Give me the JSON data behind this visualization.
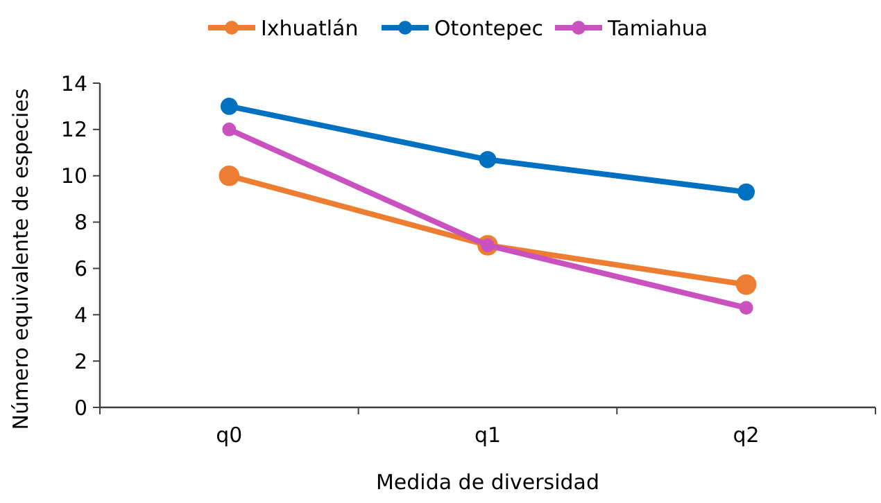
{
  "chart_data": {
    "type": "line",
    "xlabel": "Medida de diversidad",
    "ylabel": "Número equivalente de especies",
    "categories": [
      "q0",
      "q1",
      "q2"
    ],
    "series": [
      {
        "name": "Ixhuatlán",
        "color": "#ed7d31",
        "values": [
          10,
          7,
          5.3
        ]
      },
      {
        "name": "Otontepec",
        "color": "#0070c0",
        "values": [
          13,
          10.7,
          9.3
        ]
      },
      {
        "name": "Tamiahua",
        "color": "#c951c0",
        "values": [
          12,
          7,
          4.3
        ]
      }
    ],
    "ylim": [
      0,
      14
    ],
    "yticks": [
      0,
      2,
      4,
      6,
      8,
      10,
      12,
      14
    ],
    "grid": false,
    "legend": "top",
    "marker": "circle",
    "line_style": "solid"
  }
}
